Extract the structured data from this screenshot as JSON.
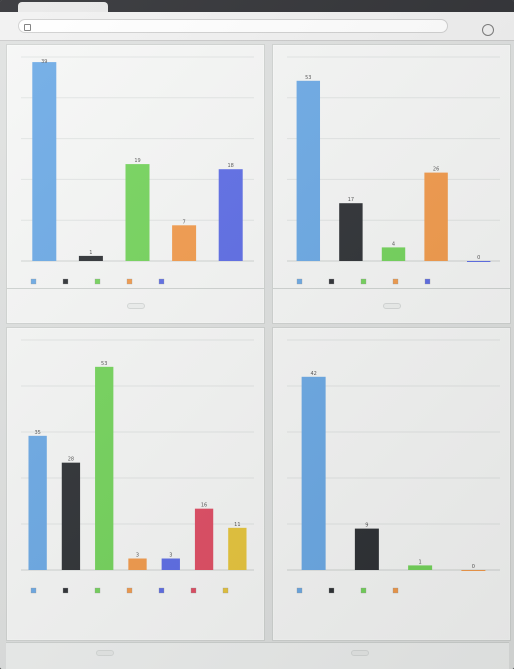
{
  "window": {
    "url": "",
    "tab_title": ""
  },
  "captions": {
    "c1": "",
    "c2": "",
    "c3": "",
    "c4": "",
    "bottom_left": "",
    "bottom_right": ""
  },
  "chart_data": [
    {
      "type": "bar",
      "categories": [
        "",
        "",
        "",
        "",
        ""
      ],
      "values": [
        39,
        1,
        19,
        7,
        18
      ],
      "colors": [
        "#6aa9e6",
        "#2c2f33",
        "#73d45a",
        "#f39a4a",
        "#5b6be6"
      ],
      "ylim": [
        0,
        40
      ]
    },
    {
      "type": "bar",
      "categories": [
        "",
        "",
        "",
        "",
        ""
      ],
      "values": [
        53,
        17,
        4,
        26,
        0
      ],
      "colors": [
        "#6aa9e6",
        "#2c2f33",
        "#73d45a",
        "#f39a4a",
        "#5b6be6"
      ],
      "ylim": [
        0,
        60
      ]
    },
    {
      "type": "bar",
      "categories": [
        "",
        "",
        "",
        "",
        "",
        "",
        ""
      ],
      "values": [
        35,
        28,
        53,
        3,
        3,
        16,
        11
      ],
      "colors": [
        "#6aa9e6",
        "#2c2f33",
        "#73d45a",
        "#f39a4a",
        "#5b6be6",
        "#e04b62",
        "#e7c53a"
      ],
      "ylim": [
        0,
        60
      ]
    },
    {
      "type": "bar",
      "categories": [
        "",
        "",
        "",
        ""
      ],
      "values": [
        42,
        9,
        1,
        0
      ],
      "colors": [
        "#6aa9e6",
        "#2c2f33",
        "#73d45a",
        "#f39a4a"
      ],
      "ylim": [
        0,
        50
      ]
    }
  ]
}
